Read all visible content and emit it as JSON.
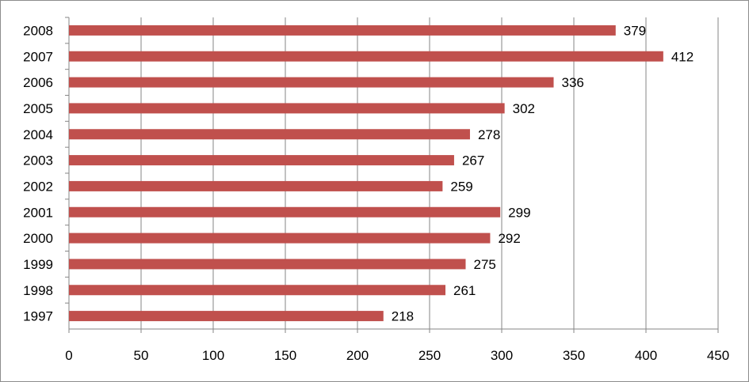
{
  "chart_data": {
    "type": "bar",
    "orientation": "horizontal",
    "title": "",
    "xlabel": "",
    "ylabel": "",
    "categories": [
      "1997",
      "1998",
      "1999",
      "2000",
      "2001",
      "2002",
      "2003",
      "2004",
      "2005",
      "2006",
      "2007",
      "2008"
    ],
    "values": [
      218,
      261,
      275,
      292,
      299,
      259,
      267,
      278,
      302,
      336,
      412,
      379
    ],
    "xlim": [
      0,
      450
    ],
    "x_ticks": [
      "0",
      "50",
      "100",
      "150",
      "200",
      "250",
      "300",
      "350",
      "400",
      "450"
    ],
    "grid": "vertical",
    "legend": "none",
    "data_labels": true,
    "bar_color": "#C0504D"
  }
}
